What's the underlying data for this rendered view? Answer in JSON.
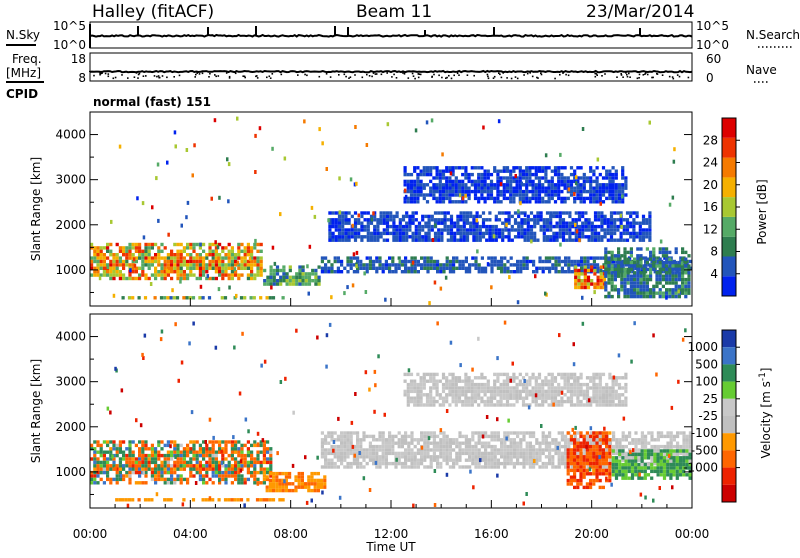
{
  "header": {
    "title": "Halley (fitACF)",
    "beam": "Beam 11",
    "date": "23/Mar/2014"
  },
  "status_panels": {
    "nsky_label": "N.Sky",
    "nsky_ticks": [
      "10^5",
      "10^0"
    ],
    "nsearch_label": "N.Search",
    "nsearch_ticks": [
      "10^5",
      "10^0"
    ],
    "freq_label": "Freq.",
    "freq_unit": "[MHz]",
    "freq_ticks": [
      "18",
      "8"
    ],
    "nave_label": "Nave",
    "nave_ticks": [
      "60",
      "0"
    ],
    "cpid_label": "CPID",
    "cpid_text": "normal (fast) 151"
  },
  "colors": {
    "power_scale": [
      "#0022ee",
      "#2255bb",
      "#2e7d4f",
      "#55aa66",
      "#a8c832",
      "#f5b000",
      "#f57a00",
      "#ee3300",
      "#dd0000"
    ],
    "velocity_scale": [
      "#1a3aa8",
      "#3b74c8",
      "#2e8b57",
      "#66cc33",
      "#c8c8c8",
      "#c0c0c0",
      "#ff9900",
      "#ff6600",
      "#ee2200",
      "#cc0000"
    ]
  },
  "chart_data": [
    {
      "type": "heatmap",
      "name": "power",
      "ylabel": "Slant Range [km]",
      "xlabel": "",
      "yticks": [
        "1000",
        "2000",
        "3000",
        "4000"
      ],
      "ylim": [
        200,
        4500
      ],
      "xlim": [
        0,
        24
      ],
      "colorbar": {
        "label": "Power [dB]",
        "ticks": [
          "4",
          "8",
          "12",
          "16",
          "20",
          "24",
          "28"
        ],
        "range": [
          0,
          32
        ]
      },
      "regions": [
        {
          "x0": 0.0,
          "x1": 6.9,
          "y0": 700,
          "y1": 1600,
          "v0": 10,
          "v1": 30
        },
        {
          "x0": 6.9,
          "x1": 9.3,
          "y0": 600,
          "y1": 1100,
          "v0": 5,
          "v1": 16
        },
        {
          "x0": 9.2,
          "x1": 24.0,
          "y0": 900,
          "y1": 1300,
          "v0": 3,
          "v1": 8
        },
        {
          "x0": 9.5,
          "x1": 22.5,
          "y0": 1600,
          "y1": 2300,
          "v0": 2,
          "v1": 6
        },
        {
          "x0": 12.5,
          "x1": 21.5,
          "y0": 2400,
          "y1": 3300,
          "v0": 2,
          "v1": 5
        },
        {
          "x0": 19.3,
          "x1": 20.6,
          "y0": 500,
          "y1": 1100,
          "v0": 14,
          "v1": 30
        },
        {
          "x0": 1.0,
          "x1": 7.8,
          "y0": 280,
          "y1": 420,
          "v0": 6,
          "v1": 22
        },
        {
          "x0": 20.5,
          "x1": 24.0,
          "y0": 300,
          "y1": 1500,
          "v0": 4,
          "v1": 12
        }
      ]
    },
    {
      "type": "heatmap",
      "name": "velocity",
      "ylabel": "Slant Range [km]",
      "xlabel": "Time UT",
      "xticks": [
        "00:00",
        "04:00",
        "08:00",
        "12:00",
        "16:00",
        "20:00",
        "00:00"
      ],
      "yticks": [
        "1000",
        "2000",
        "3000",
        "4000"
      ],
      "ylim": [
        200,
        4500
      ],
      "xlim": [
        0,
        24
      ],
      "colorbar": {
        "label": "Velocity [m s^-1]",
        "ticks": [
          "1000",
          "500",
          "100",
          "25",
          "-25",
          "-100",
          "-500",
          "-1000"
        ],
        "range": [
          -1250,
          1250
        ]
      },
      "regions": [
        {
          "x0": 0.0,
          "x1": 7.3,
          "y0": 700,
          "y1": 1700,
          "v0": -600,
          "v1": 600
        },
        {
          "x0": 7.0,
          "x1": 9.5,
          "y0": 500,
          "y1": 1000,
          "v0": -150,
          "v1": -40
        },
        {
          "x0": 9.2,
          "x1": 24.0,
          "y0": 1000,
          "y1": 1900,
          "v0": -20,
          "v1": 20
        },
        {
          "x0": 19.0,
          "x1": 20.8,
          "y0": 600,
          "y1": 1900,
          "v0": -900,
          "v1": -80
        },
        {
          "x0": 20.8,
          "x1": 24.0,
          "y0": 800,
          "y1": 1500,
          "v0": 30,
          "v1": 200
        },
        {
          "x0": 1.0,
          "x1": 7.8,
          "y0": 280,
          "y1": 420,
          "v0": -120,
          "v1": -30
        },
        {
          "x0": 12.5,
          "x1": 21.5,
          "y0": 2400,
          "y1": 3200,
          "v0": -20,
          "v1": 20
        }
      ]
    }
  ]
}
